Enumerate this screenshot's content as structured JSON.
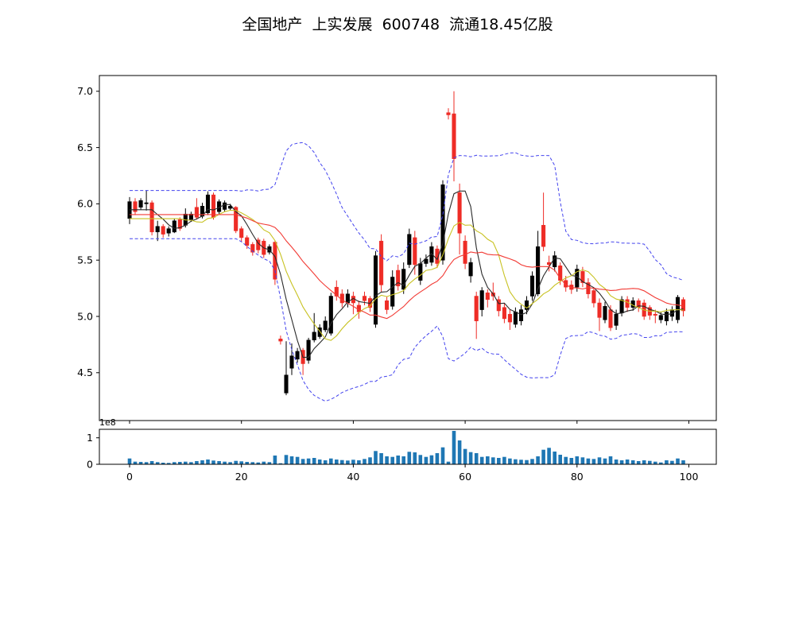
{
  "title": "全国地产  上实发展  600748  流通18.45亿股",
  "colors": {
    "background": "#ffffff",
    "axis": "#000000",
    "candle_up": "#000000",
    "candle_down": "#ee2c26",
    "ma5": "#2a2a2a",
    "ma10": "#c8c222",
    "ma20": "#f23b35",
    "bollinger": "#4343ee",
    "volume_bar": "#1f77b4"
  },
  "chart_data": [
    {
      "id": "price_panel",
      "type": "candlestick",
      "title": "",
      "xlabel": "",
      "ylabel": "",
      "grid": false,
      "xlim": [
        -5.4,
        104.9
      ],
      "ylim": [
        4.075,
        7.14
      ],
      "yticks": [
        4.5,
        5.0,
        5.5,
        6.0,
        6.5,
        7.0
      ],
      "xticks": [
        0,
        20,
        40,
        60,
        80,
        100
      ],
      "xtick_labels_visible": false,
      "candle_convention": "black=up, red=down",
      "overlays": [
        {
          "name": "MA5",
          "type": "sma",
          "window": 5,
          "color": "#2a2a2a",
          "style": "solid"
        },
        {
          "name": "MA10",
          "type": "sma",
          "window": 10,
          "color": "#c8c222",
          "style": "solid"
        },
        {
          "name": "MA20",
          "type": "sma",
          "window": 20,
          "color": "#f23b35",
          "style": "solid"
        },
        {
          "name": "BOLL-upper",
          "type": "bollinger_upper",
          "window": 20,
          "k": 2,
          "color": "#4343ee",
          "style": "dashed"
        },
        {
          "name": "BOLL-lower",
          "type": "bollinger_lower",
          "window": 20,
          "k": 2,
          "color": "#4343ee",
          "style": "dashed"
        }
      ],
      "ohlc": [
        [
          5.87,
          6.06,
          5.82,
          6.02
        ],
        [
          6.02,
          6.05,
          5.9,
          5.93
        ],
        [
          5.97,
          6.05,
          5.95,
          6.03
        ],
        [
          6.0,
          6.12,
          5.94,
          6.01
        ],
        [
          6.01,
          6.03,
          5.72,
          5.75
        ],
        [
          5.75,
          5.85,
          5.67,
          5.8
        ],
        [
          5.8,
          5.82,
          5.7,
          5.73
        ],
        [
          5.74,
          5.8,
          5.71,
          5.78
        ],
        [
          5.75,
          5.87,
          5.74,
          5.85
        ],
        [
          5.86,
          5.88,
          5.76,
          5.78
        ],
        [
          5.81,
          5.96,
          5.79,
          5.91
        ],
        [
          5.86,
          5.93,
          5.84,
          5.91
        ],
        [
          5.97,
          6.05,
          5.86,
          5.88
        ],
        [
          5.89,
          6.01,
          5.87,
          5.98
        ],
        [
          5.92,
          6.11,
          5.9,
          6.08
        ],
        [
          6.08,
          6.1,
          5.86,
          5.88
        ],
        [
          5.93,
          6.04,
          5.91,
          6.02
        ],
        [
          5.95,
          6.03,
          5.93,
          6.01
        ],
        [
          5.96,
          6.0,
          5.94,
          5.98
        ],
        [
          5.97,
          5.98,
          5.74,
          5.76
        ],
        [
          5.78,
          5.8,
          5.66,
          5.7
        ],
        [
          5.7,
          5.72,
          5.6,
          5.63
        ],
        [
          5.64,
          5.66,
          5.54,
          5.57
        ],
        [
          5.68,
          5.7,
          5.56,
          5.59
        ],
        [
          5.67,
          5.69,
          5.52,
          5.55
        ],
        [
          5.57,
          5.64,
          5.55,
          5.62
        ],
        [
          5.66,
          5.67,
          5.28,
          5.33
        ],
        [
          4.8,
          4.83,
          4.75,
          4.78
        ],
        [
          4.32,
          4.78,
          4.3,
          4.48
        ],
        [
          4.54,
          4.76,
          4.48,
          4.65
        ],
        [
          4.62,
          4.72,
          4.59,
          4.69
        ],
        [
          4.7,
          4.72,
          4.48,
          4.58
        ],
        [
          4.61,
          4.81,
          4.58,
          4.79
        ],
        [
          4.79,
          5.03,
          4.77,
          4.86
        ],
        [
          4.82,
          4.93,
          4.8,
          4.9
        ],
        [
          4.88,
          5.0,
          4.86,
          4.96
        ],
        [
          4.85,
          5.21,
          4.83,
          5.18
        ],
        [
          5.26,
          5.32,
          5.14,
          5.18
        ],
        [
          5.2,
          5.24,
          5.08,
          5.12
        ],
        [
          5.12,
          5.24,
          5.08,
          5.2
        ],
        [
          5.18,
          5.22,
          5.02,
          5.12
        ],
        [
          5.1,
          5.14,
          4.98,
          5.04
        ],
        [
          5.18,
          5.22,
          5.1,
          5.14
        ],
        [
          5.16,
          5.18,
          5.04,
          5.08
        ],
        [
          4.93,
          5.58,
          4.9,
          5.54
        ],
        [
          5.67,
          5.73,
          5.22,
          5.28
        ],
        [
          5.14,
          5.18,
          5.02,
          5.06
        ],
        [
          5.09,
          5.41,
          5.06,
          5.35
        ],
        [
          5.41,
          5.46,
          5.23,
          5.27
        ],
        [
          5.24,
          5.48,
          5.2,
          5.42
        ],
        [
          5.46,
          5.78,
          5.43,
          5.73
        ],
        [
          5.7,
          5.76,
          5.37,
          5.46
        ],
        [
          5.32,
          5.52,
          5.28,
          5.47
        ],
        [
          5.47,
          5.55,
          5.44,
          5.51
        ],
        [
          5.48,
          5.66,
          5.45,
          5.62
        ],
        [
          5.6,
          5.63,
          5.43,
          5.47
        ],
        [
          5.5,
          6.21,
          5.46,
          6.17
        ],
        [
          6.81,
          6.85,
          6.75,
          6.79
        ],
        [
          6.8,
          7.0,
          6.2,
          6.4
        ],
        [
          6.1,
          6.18,
          5.55,
          5.74
        ],
        [
          5.67,
          5.72,
          5.42,
          5.47
        ],
        [
          5.36,
          5.52,
          5.3,
          5.48
        ],
        [
          5.18,
          5.22,
          4.8,
          4.96
        ],
        [
          5.06,
          5.26,
          5.0,
          5.23
        ],
        [
          5.21,
          5.24,
          5.08,
          5.15
        ],
        [
          5.21,
          5.3,
          5.14,
          5.18
        ],
        [
          5.15,
          5.18,
          5.0,
          5.05
        ],
        [
          5.08,
          5.12,
          4.94,
          4.98
        ],
        [
          5.02,
          5.06,
          4.88,
          4.95
        ],
        [
          4.93,
          5.08,
          4.9,
          5.04
        ],
        [
          4.96,
          5.1,
          4.92,
          5.06
        ],
        [
          5.06,
          5.18,
          5.02,
          5.14
        ],
        [
          5.18,
          5.4,
          5.14,
          5.36
        ],
        [
          5.2,
          5.76,
          5.18,
          5.62
        ],
        [
          5.81,
          6.1,
          5.58,
          5.62
        ],
        [
          5.48,
          5.54,
          5.4,
          5.46
        ],
        [
          5.44,
          5.58,
          5.4,
          5.54
        ],
        [
          5.45,
          5.48,
          5.28,
          5.32
        ],
        [
          5.32,
          5.36,
          5.22,
          5.26
        ],
        [
          5.28,
          5.32,
          5.2,
          5.24
        ],
        [
          5.26,
          5.46,
          5.22,
          5.42
        ],
        [
          5.4,
          5.44,
          5.26,
          5.3
        ],
        [
          5.3,
          5.34,
          5.16,
          5.2
        ],
        [
          5.23,
          5.26,
          5.08,
          5.12
        ],
        [
          5.12,
          5.16,
          4.87,
          4.99
        ],
        [
          4.97,
          5.13,
          4.94,
          5.09
        ],
        [
          5.06,
          5.1,
          4.87,
          4.9
        ],
        [
          4.92,
          5.06,
          4.88,
          5.02
        ],
        [
          5.03,
          5.18,
          5.0,
          5.15
        ],
        [
          5.15,
          5.18,
          5.04,
          5.08
        ],
        [
          5.08,
          5.17,
          5.05,
          5.14
        ],
        [
          5.14,
          5.16,
          5.04,
          5.08
        ],
        [
          5.12,
          5.15,
          4.97,
          5.0
        ],
        [
          5.08,
          5.1,
          4.97,
          5.01
        ],
        [
          5.02,
          5.06,
          4.94,
          5.01
        ],
        [
          4.97,
          5.04,
          4.94,
          5.01
        ],
        [
          4.96,
          5.07,
          4.92,
          5.04
        ],
        [
          5.0,
          5.09,
          4.96,
          5.06
        ],
        [
          4.97,
          5.19,
          4.94,
          5.17
        ],
        [
          5.15,
          5.17,
          5.0,
          5.05
        ]
      ]
    },
    {
      "id": "volume_panel",
      "type": "bar",
      "title": "",
      "xlabel": "",
      "ylabel": "",
      "unit": "1e8",
      "offset_label": "1e8",
      "grid": false,
      "xlim": [
        -5.4,
        104.9
      ],
      "ylim": [
        0,
        1.32
      ],
      "yticks": [
        0,
        1
      ],
      "xticks": [
        0,
        20,
        40,
        60,
        80,
        100
      ],
      "bar_color": "#1f77b4",
      "values": [
        0.22,
        0.1,
        0.09,
        0.08,
        0.12,
        0.08,
        0.06,
        0.05,
        0.08,
        0.09,
        0.1,
        0.08,
        0.12,
        0.15,
        0.18,
        0.14,
        0.12,
        0.1,
        0.08,
        0.13,
        0.11,
        0.09,
        0.08,
        0.07,
        0.1,
        0.08,
        0.33,
        0.04,
        0.35,
        0.3,
        0.28,
        0.2,
        0.22,
        0.24,
        0.18,
        0.15,
        0.22,
        0.18,
        0.16,
        0.14,
        0.17,
        0.15,
        0.2,
        0.26,
        0.5,
        0.42,
        0.3,
        0.28,
        0.33,
        0.3,
        0.47,
        0.45,
        0.35,
        0.28,
        0.34,
        0.42,
        0.64,
        0.1,
        1.26,
        0.9,
        0.58,
        0.46,
        0.42,
        0.28,
        0.3,
        0.26,
        0.24,
        0.28,
        0.22,
        0.19,
        0.17,
        0.16,
        0.2,
        0.3,
        0.55,
        0.62,
        0.48,
        0.36,
        0.28,
        0.24,
        0.3,
        0.26,
        0.22,
        0.2,
        0.26,
        0.22,
        0.3,
        0.18,
        0.15,
        0.18,
        0.15,
        0.12,
        0.15,
        0.13,
        0.1,
        0.07,
        0.15,
        0.13,
        0.22,
        0.15
      ]
    }
  ]
}
